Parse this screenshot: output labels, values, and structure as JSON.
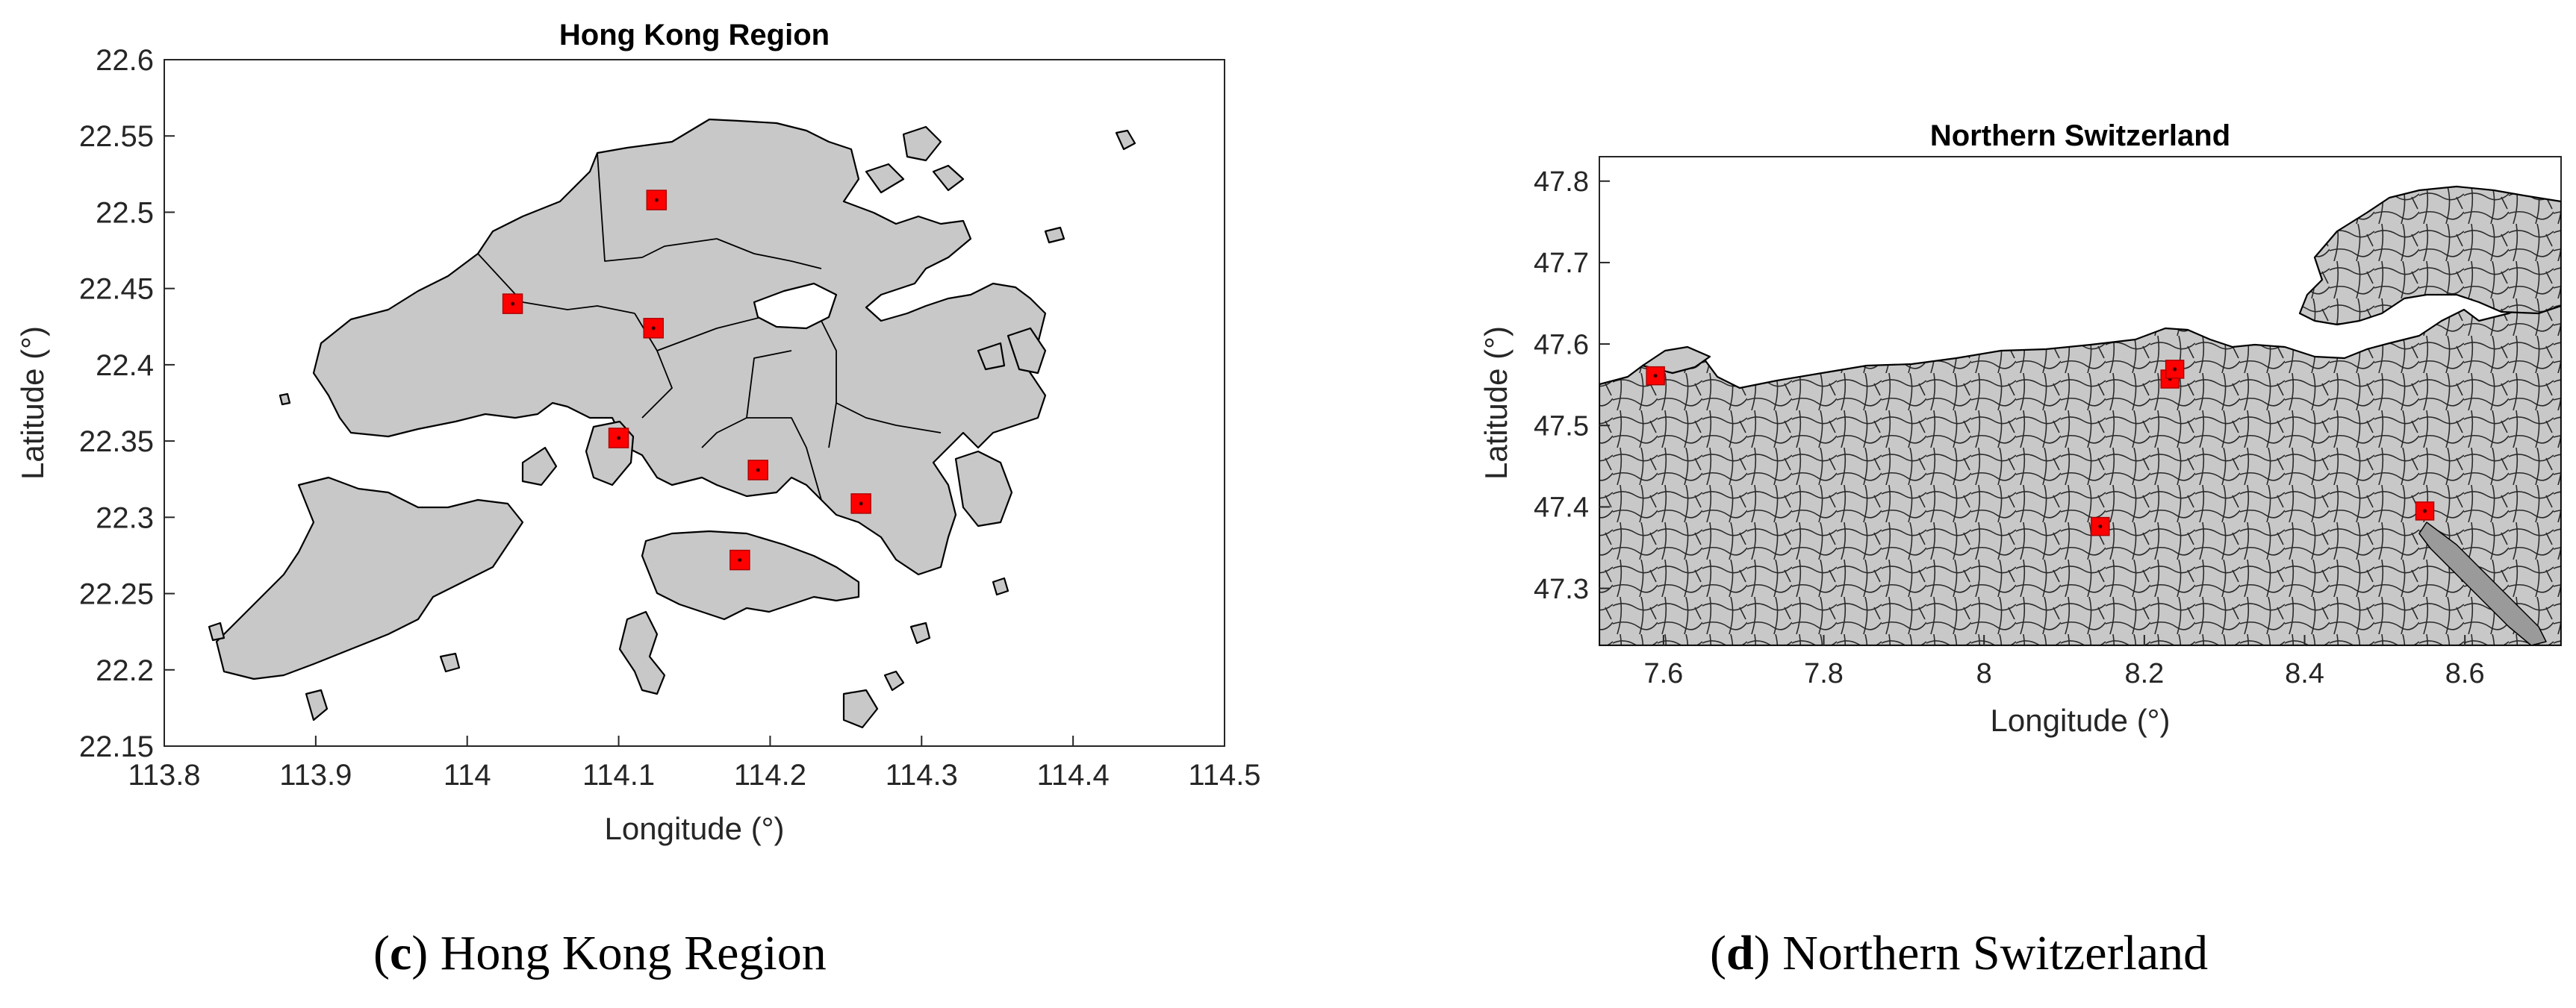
{
  "panels": [
    {
      "id": "c",
      "title": "Hong Kong Region",
      "xlabel": "Longitude (°)",
      "ylabel": "Latitude (°)",
      "xlim": [
        113.8,
        114.5
      ],
      "ylim": [
        22.15,
        22.6
      ],
      "xticks": [
        "113.8",
        "113.9",
        "114",
        "114.1",
        "114.2",
        "114.3",
        "114.4",
        "114.5"
      ],
      "yticks": [
        "22.15",
        "22.2",
        "22.25",
        "22.3",
        "22.35",
        "22.4",
        "22.45",
        "22.5",
        "22.55",
        "22.6"
      ],
      "land_color": "#c8c8c8",
      "marker_color": "#ff0000",
      "markers": [
        {
          "lon": 114.125,
          "lat": 22.508
        },
        {
          "lon": 114.03,
          "lat": 22.44
        },
        {
          "lon": 114.123,
          "lat": 22.424
        },
        {
          "lon": 114.1,
          "lat": 22.352
        },
        {
          "lon": 114.192,
          "lat": 22.331
        },
        {
          "lon": 114.26,
          "lat": 22.309
        },
        {
          "lon": 114.18,
          "lat": 22.272
        }
      ],
      "caption_letter": "c",
      "caption_text": "Hong Kong Region"
    },
    {
      "id": "d",
      "title": "Northern Switzerland",
      "xlabel": "Longitude (°)",
      "ylabel": "Latitude (°)",
      "xlim": [
        7.52,
        8.72
      ],
      "ylim": [
        47.23,
        47.83
      ],
      "xticks": [
        "7.6",
        "7.8",
        "8",
        "8.2",
        "8.4",
        "8.6"
      ],
      "yticks": [
        "47.3",
        "47.4",
        "47.5",
        "47.6",
        "47.7",
        "47.8"
      ],
      "land_color": "#c8c8c8",
      "marker_color": "#ff0000",
      "markers": [
        {
          "lon": 7.59,
          "lat": 47.561
        },
        {
          "lon": 8.232,
          "lat": 47.557
        },
        {
          "lon": 8.238,
          "lat": 47.569
        },
        {
          "lon": 8.145,
          "lat": 47.376
        },
        {
          "lon": 8.55,
          "lat": 47.395
        }
      ],
      "caption_letter": "d",
      "caption_text": "Northern Switzerland"
    }
  ]
}
